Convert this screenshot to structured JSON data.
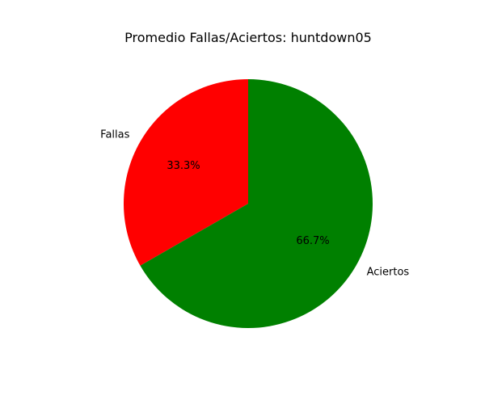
{
  "chart_data": {
    "type": "pie",
    "title": "Promedio Fallas/Aciertos: huntdown05",
    "slices": [
      {
        "label": "Fallas",
        "value": 33.3,
        "pct_label": "33.3%",
        "color": "#ff0000"
      },
      {
        "label": "Aciertos",
        "value": 66.7,
        "pct_label": "66.7%",
        "color": "#008000"
      }
    ],
    "start_angle_deg": 90,
    "direction": "counterclockwise"
  }
}
